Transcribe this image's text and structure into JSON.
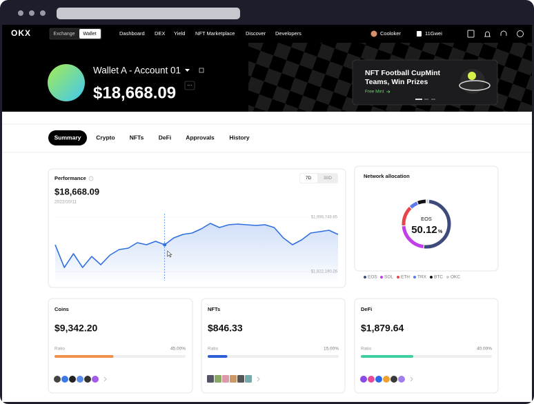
{
  "nav": {
    "logo": "OKX",
    "modes": [
      "Exchange",
      "Wallet"
    ],
    "menu": [
      "Dashboard",
      "DEX",
      "Yield",
      "NFT Marketplace",
      "Discover",
      "Developers"
    ],
    "account": "Cooloker",
    "gas": "11Gwei"
  },
  "hero": {
    "wallet_name": "Wallet A - Account 01",
    "balance": "$18,668.09",
    "banner": {
      "title_lines": [
        "NFT Football CupMint",
        "Teams, Win Prizes"
      ],
      "link": "Free Mint"
    }
  },
  "tabs": [
    "Summary",
    "Crypto",
    "NFTs",
    "DeFi",
    "Approvals",
    "History"
  ],
  "performance": {
    "title": "Performance",
    "value": "$18,668.09",
    "date": "2022/10/11",
    "ranges": [
      "7D",
      "30D"
    ],
    "chart": {
      "type": "line",
      "color": "#2f6fe0",
      "ylim": [
        1822190.26,
        1996749.85
      ],
      "yticks": [
        {
          "value": 1996749.85,
          "label": "$1,996,749.85"
        },
        {
          "value": 1822190.26,
          "label": "$1,822,190.26"
        }
      ],
      "values": [
        1908365,
        1835448,
        1879640,
        1835448,
        1870801,
        1844286,
        1875220,
        1892897,
        1897316,
        1914993,
        1908365,
        1919412,
        1908365,
        1930460,
        1941508,
        1945928,
        1959185,
        1976861,
        1963604,
        1972442,
        1974652,
        1972442,
        1970232,
        1972442,
        1963604,
        1930460,
        1908365,
        1923831,
        1945928,
        1950347,
        1954766,
        1941508
      ]
    }
  },
  "network": {
    "title": "Network allocation",
    "chart": {
      "type": "pie",
      "unit": "%",
      "series": [
        {
          "name": "EOS",
          "color": "#3d4a7a",
          "value": 50.12
        },
        {
          "name": "SOL",
          "color": "#c13fe8",
          "value": 22
        },
        {
          "name": "ETH",
          "color": "#e8454a",
          "value": 14
        },
        {
          "name": "TRX",
          "color": "#5b7be8",
          "value": 6
        },
        {
          "name": "BTC",
          "color": "#111111",
          "value": 6
        },
        {
          "name": "OKC",
          "color": "#cfcfd6",
          "value": 1.88
        }
      ]
    }
  },
  "cards": [
    {
      "title": "Coins",
      "value": "$9,342.20",
      "ratio_label": "Ratio",
      "ratio": 45,
      "ratio_text": "45.00%",
      "color": "#f0914f"
    },
    {
      "title": "NFTs",
      "value": "$846.33",
      "ratio_label": "Ratio",
      "ratio": 15,
      "ratio_text": "15.00%",
      "color": "#2f5fd8"
    },
    {
      "title": "DeFi",
      "value": "$1,879.64",
      "ratio_label": "Ratio",
      "ratio": 40,
      "ratio_text": "40.00%",
      "color": "#3fcfa2"
    }
  ]
}
